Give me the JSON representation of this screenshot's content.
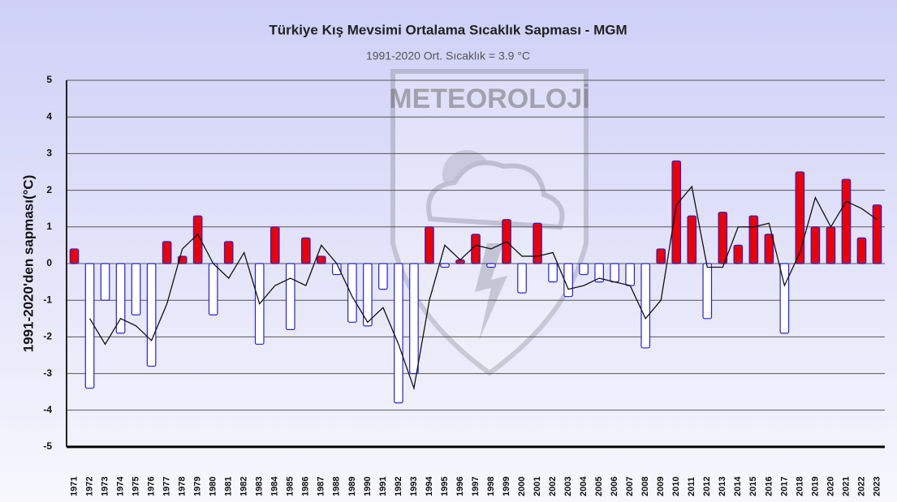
{
  "watermark": "METEOROLOJİ",
  "chart_data": {
    "type": "bar",
    "title": "Türkiye Kış Mevsimi Ortalama Sıcaklık Sapması - MGM",
    "subtitle": "1991-2020 Ort. Sıcaklık = 3.9 °C",
    "y_label": "1991-2020'den sapması(°C)",
    "categories": [
      "1971",
      "1972",
      "1973",
      "1974",
      "1975",
      "1976",
      "1977",
      "1978",
      "1979",
      "1980",
      "1981",
      "1982",
      "1983",
      "1984",
      "1985",
      "1986",
      "1987",
      "1988",
      "1989",
      "1990",
      "1991",
      "1992",
      "1993",
      "1994",
      "1995",
      "1996",
      "1997",
      "1998",
      "1999",
      "2000",
      "2001",
      "2002",
      "2003",
      "2004",
      "2005",
      "2006",
      "2007",
      "2008",
      "2009",
      "2010",
      "2011",
      "2012",
      "2013",
      "2014",
      "2015",
      "2016",
      "2017",
      "2018",
      "2019",
      "2020",
      "2021",
      "2022",
      "2023"
    ],
    "series": [
      {
        "type": "bar",
        "positive_color": "#ee0000",
        "negative_color": "#ffffff",
        "edge_color": "#2222dd",
        "values": [
          0.4,
          -3.4,
          -1.0,
          -1.9,
          -1.4,
          -2.8,
          0.6,
          0.2,
          1.3,
          -1.4,
          0.6,
          0.0,
          -2.2,
          1.0,
          -1.8,
          0.7,
          0.2,
          -0.3,
          -1.6,
          -1.7,
          -0.7,
          -3.8,
          -3.0,
          1.0,
          -0.1,
          0.1,
          0.8,
          -0.1,
          1.2,
          -0.8,
          1.1,
          -0.5,
          -0.9,
          -0.3,
          -0.5,
          -0.5,
          -0.6,
          -2.3,
          0.4,
          2.8,
          1.3,
          -1.5,
          1.4,
          0.5,
          1.3,
          0.8,
          -1.9,
          2.5,
          1.0,
          1.0,
          2.3,
          0.7,
          1.6
        ]
      },
      {
        "type": "line",
        "color": "#111111",
        "values": [
          null,
          -1.5,
          -2.2,
          -1.5,
          -1.7,
          -2.1,
          -1.1,
          0.4,
          0.8,
          0.0,
          -0.4,
          0.3,
          -1.1,
          -0.6,
          -0.4,
          -0.6,
          0.5,
          0.0,
          -0.9,
          -1.6,
          -1.2,
          -2.2,
          -3.4,
          -1.0,
          0.5,
          0.1,
          0.5,
          0.4,
          0.6,
          0.2,
          0.2,
          0.3,
          -0.7,
          -0.6,
          -0.4,
          -0.5,
          -0.6,
          -1.5,
          -1.0,
          1.6,
          2.1,
          -0.1,
          -0.1,
          1.0,
          1.0,
          1.1,
          -0.6,
          0.3,
          1.8,
          1.0,
          1.7,
          1.5,
          1.2
        ]
      }
    ],
    "ylim": [
      -5,
      5
    ],
    "yticks": [
      -5,
      -4,
      -3,
      -2,
      -1,
      0,
      1,
      2,
      3,
      4,
      5
    ],
    "grid": true
  }
}
